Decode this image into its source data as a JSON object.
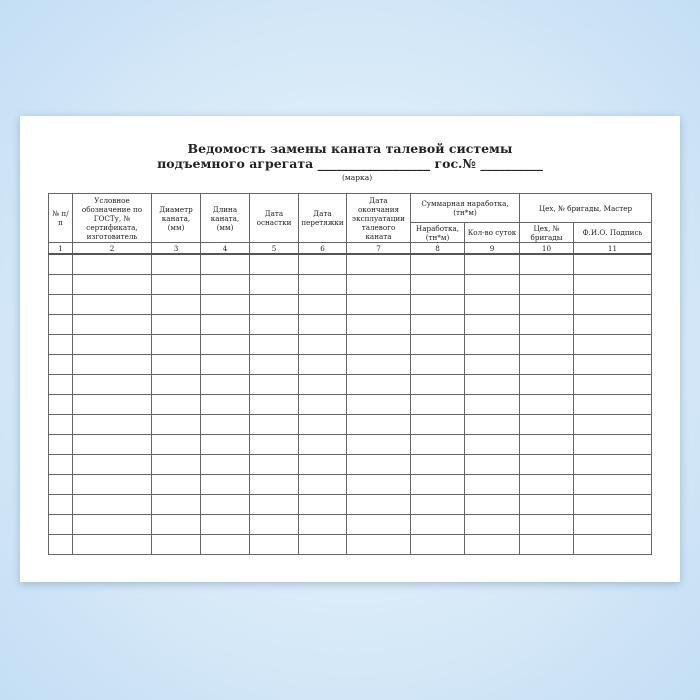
{
  "document": {
    "title_line1": "Ведомость замены каната талевой системы",
    "title_line2": "подъемного агрегата __________________ гос.№ __________",
    "title_note": "(марка)",
    "columns": {
      "c1": "№ п/п",
      "c2": "Условное обозначение по ГОСТу, № сертификата, изготовитель",
      "c3": "Диаметр каната, (мм)",
      "c4": "Длина каната, (мм)",
      "c5": "Дата оснастки",
      "c6": "Дата перетяжки",
      "c7": "Дата окончания эксплуатации талевого каната",
      "g1": "Суммарная наработка, (тн*м)",
      "c8": "Наработка, (тн*м)",
      "c9": "Кол-во суток",
      "g2": "Цех, № бригады, Мастер",
      "c10": "Цех, № бригады",
      "c11": "Ф.И.О. Подпись"
    },
    "column_numbers": [
      "1",
      "2",
      "3",
      "4",
      "5",
      "6",
      "7",
      "8",
      "9",
      "10",
      "11"
    ],
    "empty_rows": 15
  }
}
